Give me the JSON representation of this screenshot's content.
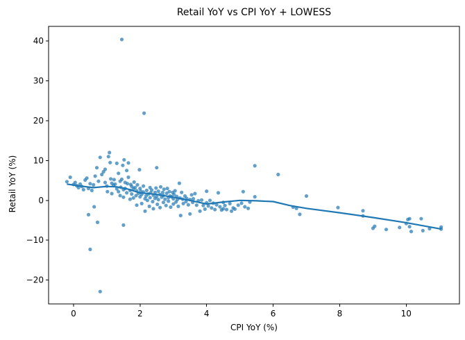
{
  "chart_data": {
    "type": "scatter",
    "title": "Retail YoY vs CPI YoY + LOWESS",
    "xlabel": "CPI YoY (%)",
    "ylabel": "Retail YoY (%)",
    "xlim": [
      -0.75,
      11.6
    ],
    "ylim": [
      -26,
      43.7
    ],
    "xticks": [
      0,
      2,
      4,
      6,
      8,
      10
    ],
    "yticks": [
      -20,
      -10,
      0,
      10,
      20,
      30,
      40
    ],
    "xtick_labels": [
      "0",
      "2",
      "4",
      "6",
      "8",
      "10"
    ],
    "ytick_labels": [
      "−20",
      "−10",
      "0",
      "10",
      "20",
      "30",
      "40"
    ],
    "grid": false,
    "colors": {
      "points": "#1f77b4",
      "line": "#1f77b4"
    },
    "series": [
      {
        "type": "scatter",
        "points": [
          [
            -0.2,
            4.7
          ],
          [
            -0.1,
            5.8
          ],
          [
            0.0,
            4.0
          ],
          [
            0.05,
            4.5
          ],
          [
            0.1,
            3.7
          ],
          [
            0.15,
            3.2
          ],
          [
            0.2,
            4.1
          ],
          [
            0.25,
            3.5
          ],
          [
            0.3,
            2.7
          ],
          [
            0.35,
            5.1
          ],
          [
            0.4,
            5.6
          ],
          [
            0.45,
            3.0
          ],
          [
            0.5,
            4.2
          ],
          [
            0.55,
            2.5
          ],
          [
            0.6,
            3.9
          ],
          [
            0.45,
            -3.6
          ],
          [
            0.5,
            -12.3
          ],
          [
            0.62,
            -1.6
          ],
          [
            0.65,
            6.1
          ],
          [
            0.7,
            8.2
          ],
          [
            0.72,
            -5.5
          ],
          [
            0.75,
            4.8
          ],
          [
            0.8,
            10.8
          ],
          [
            0.8,
            -22.9
          ],
          [
            0.85,
            6.5
          ],
          [
            0.9,
            7.2
          ],
          [
            0.95,
            7.8
          ],
          [
            0.95,
            4.5
          ],
          [
            1.0,
            3.6
          ],
          [
            1.02,
            2.2
          ],
          [
            1.05,
            11.0
          ],
          [
            1.08,
            12.0
          ],
          [
            1.1,
            9.5
          ],
          [
            1.12,
            5.4
          ],
          [
            1.15,
            4.3
          ],
          [
            1.15,
            1.7
          ],
          [
            1.2,
            3.8
          ],
          [
            1.22,
            5.2
          ],
          [
            1.25,
            4.1
          ],
          [
            1.3,
            9.3
          ],
          [
            1.3,
            2.9
          ],
          [
            1.35,
            6.8
          ],
          [
            1.35,
            2.2
          ],
          [
            1.4,
            4.8
          ],
          [
            1.4,
            1.2
          ],
          [
            1.42,
            3.3
          ],
          [
            1.45,
            40.4
          ],
          [
            1.45,
            5.3
          ],
          [
            1.48,
            8.8
          ],
          [
            1.5,
            2.7
          ],
          [
            1.5,
            0.8
          ],
          [
            1.5,
            -6.2
          ],
          [
            1.52,
            10.2
          ],
          [
            1.55,
            4.5
          ],
          [
            1.55,
            3.0
          ],
          [
            1.6,
            7.5
          ],
          [
            1.6,
            1.9
          ],
          [
            1.62,
            4.2
          ],
          [
            1.65,
            5.8
          ],
          [
            1.65,
            9.4
          ],
          [
            1.7,
            2.5
          ],
          [
            1.7,
            0.3
          ],
          [
            1.72,
            4.0
          ],
          [
            1.75,
            3.5
          ],
          [
            1.75,
            1.6
          ],
          [
            1.8,
            2.9
          ],
          [
            1.8,
            0.6
          ],
          [
            1.82,
            4.6
          ],
          [
            1.85,
            3.2
          ],
          [
            1.88,
            1.2
          ],
          [
            1.9,
            2.4
          ],
          [
            1.9,
            -1.2
          ],
          [
            1.92,
            3.9
          ],
          [
            1.95,
            1.8
          ],
          [
            1.98,
            7.7
          ],
          [
            2.0,
            3.0
          ],
          [
            2.0,
            0.9
          ],
          [
            2.02,
            2.3
          ],
          [
            2.05,
            1.5
          ],
          [
            2.05,
            -0.8
          ],
          [
            2.1,
            2.1
          ],
          [
            2.1,
            3.6
          ],
          [
            2.12,
            21.9
          ],
          [
            2.15,
            0.4
          ],
          [
            2.15,
            -2.7
          ],
          [
            2.18,
            1.1
          ],
          [
            2.2,
            2.5
          ],
          [
            2.22,
            0.0
          ],
          [
            2.25,
            1.6
          ],
          [
            2.28,
            -1.5
          ],
          [
            2.3,
            3.2
          ],
          [
            2.3,
            0.7
          ],
          [
            2.32,
            1.9
          ],
          [
            2.35,
            2.6
          ],
          [
            2.38,
            -0.3
          ],
          [
            2.4,
            1.3
          ],
          [
            2.4,
            -2.1
          ],
          [
            2.45,
            2.0
          ],
          [
            2.45,
            0.5
          ],
          [
            2.48,
            3.1
          ],
          [
            2.5,
            8.2
          ],
          [
            2.5,
            1.0
          ],
          [
            2.52,
            -1.0
          ],
          [
            2.55,
            2.3
          ],
          [
            2.55,
            0.2
          ],
          [
            2.6,
            1.5
          ],
          [
            2.6,
            -1.8
          ],
          [
            2.62,
            3.4
          ],
          [
            2.65,
            0.8
          ],
          [
            2.68,
            2.0
          ],
          [
            2.7,
            -0.5
          ],
          [
            2.7,
            1.2
          ],
          [
            2.72,
            2.8
          ],
          [
            2.75,
            0.3
          ],
          [
            2.78,
            -1.3
          ],
          [
            2.8,
            1.8
          ],
          [
            2.82,
            3.0
          ],
          [
            2.85,
            0.7
          ],
          [
            2.85,
            -0.2
          ],
          [
            2.88,
            2.2
          ],
          [
            2.9,
            1.1
          ],
          [
            2.92,
            -1.7
          ],
          [
            2.95,
            0.9
          ],
          [
            2.98,
            2.0
          ],
          [
            3.0,
            0.4
          ],
          [
            3.0,
            -0.9
          ],
          [
            3.02,
            1.5
          ],
          [
            3.05,
            2.4
          ],
          [
            3.08,
            -0.4
          ],
          [
            3.1,
            1.0
          ],
          [
            3.12,
            0.2
          ],
          [
            3.15,
            -1.5
          ],
          [
            3.18,
            4.3
          ],
          [
            3.2,
            0.6
          ],
          [
            3.22,
            -3.8
          ],
          [
            3.25,
            2.0
          ],
          [
            3.28,
            0.3
          ],
          [
            3.3,
            -0.8
          ],
          [
            3.35,
            1.1
          ],
          [
            3.38,
            -0.3
          ],
          [
            3.4,
            0.5
          ],
          [
            3.45,
            -1.1
          ],
          [
            3.5,
            0.2
          ],
          [
            3.5,
            -3.4
          ],
          [
            3.55,
            1.4
          ],
          [
            3.58,
            -0.5
          ],
          [
            3.6,
            0.4
          ],
          [
            3.65,
            1.7
          ],
          [
            3.7,
            -1.2
          ],
          [
            3.75,
            -0.1
          ],
          [
            3.8,
            -2.7
          ],
          [
            3.85,
            0.1
          ],
          [
            3.9,
            -1.3
          ],
          [
            3.95,
            -2.2
          ],
          [
            4.0,
            2.3
          ],
          [
            4.0,
            -0.6
          ],
          [
            4.05,
            -1.4
          ],
          [
            4.1,
            0.0
          ],
          [
            4.15,
            -1.9
          ],
          [
            4.2,
            -0.7
          ],
          [
            4.25,
            -2.3
          ],
          [
            4.3,
            -1.1
          ],
          [
            4.35,
            1.9
          ],
          [
            4.4,
            -1.6
          ],
          [
            4.45,
            -2.4
          ],
          [
            4.5,
            -0.5
          ],
          [
            4.5,
            -2.1
          ],
          [
            4.55,
            -1.3
          ],
          [
            4.6,
            -2.3
          ],
          [
            4.7,
            -0.8
          ],
          [
            4.75,
            -2.7
          ],
          [
            4.8,
            -1.9
          ],
          [
            4.85,
            -2.2
          ],
          [
            4.95,
            -1.2
          ],
          [
            5.05,
            -0.7
          ],
          [
            5.1,
            2.2
          ],
          [
            5.15,
            -1.6
          ],
          [
            5.25,
            -2.0
          ],
          [
            5.3,
            -0.4
          ],
          [
            5.45,
            8.7
          ],
          [
            5.45,
            0.9
          ],
          [
            6.15,
            6.5
          ],
          [
            6.6,
            -1.7
          ],
          [
            6.7,
            -2.0
          ],
          [
            6.8,
            -3.5
          ],
          [
            7.0,
            1.1
          ],
          [
            7.95,
            -1.8
          ],
          [
            8.7,
            -2.6
          ],
          [
            8.7,
            -3.9
          ],
          [
            9.0,
            -7.0
          ],
          [
            9.05,
            -6.5
          ],
          [
            9.4,
            -7.3
          ],
          [
            9.8,
            -6.8
          ],
          [
            10.0,
            -5.8
          ],
          [
            10.05,
            -4.8
          ],
          [
            10.1,
            -4.6
          ],
          [
            10.1,
            -6.6
          ],
          [
            10.15,
            -7.8
          ],
          [
            10.45,
            -4.6
          ],
          [
            10.5,
            -7.6
          ],
          [
            10.7,
            -7.1
          ],
          [
            11.05,
            -6.7
          ],
          [
            11.05,
            -7.2
          ]
        ]
      },
      {
        "type": "line",
        "points": [
          [
            -0.2,
            4.1
          ],
          [
            0.2,
            3.6
          ],
          [
            0.6,
            3.2
          ],
          [
            1.0,
            3.5
          ],
          [
            1.3,
            3.4
          ],
          [
            1.6,
            2.9
          ],
          [
            2.0,
            1.9
          ],
          [
            2.5,
            1.5
          ],
          [
            3.0,
            0.8
          ],
          [
            3.5,
            0.0
          ],
          [
            4.0,
            -0.9
          ],
          [
            4.5,
            -0.4
          ],
          [
            5.0,
            0.0
          ],
          [
            5.5,
            -0.1
          ],
          [
            6.0,
            -0.3
          ],
          [
            6.5,
            -1.3
          ],
          [
            7.0,
            -2.0
          ],
          [
            8.0,
            -3.1
          ],
          [
            9.0,
            -4.3
          ],
          [
            10.0,
            -5.6
          ],
          [
            11.05,
            -7.2
          ]
        ]
      }
    ]
  }
}
